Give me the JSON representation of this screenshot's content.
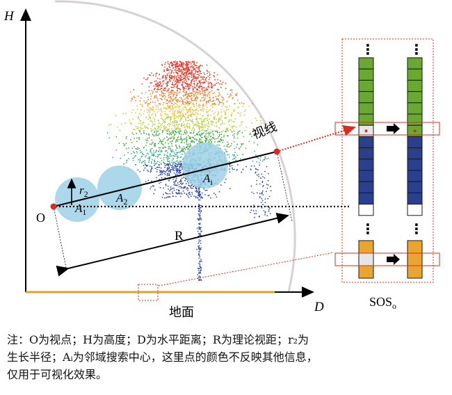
{
  "figure": {
    "axis_h": "H",
    "axis_d": "D",
    "origin": "O",
    "radius_r": "R",
    "r2_main": "r",
    "r2_sub": "2",
    "a1_main": "A",
    "a1_sub": "1",
    "a2_main": "A",
    "a2_sub": "2",
    "ai_main": "A",
    "ai_sub": "i",
    "sight_line": "视线",
    "ground": "地面",
    "sos_main": "SOS",
    "sos_sub": "o",
    "dots": "⋮"
  },
  "colors": {
    "green": "#6aa832",
    "blue": "#2b3f8f",
    "orange": "#eaa530",
    "bubble": "#9fd0e6",
    "red": "#d92b1f"
  },
  "caption": {
    "line1": "注：O为视点；H为高度；D为水平距离；R为理论视距；r₂为",
    "line2": "生长半径；Aᵢ为邻域搜索中心，这里点的颜色不反映其他信息，",
    "line3": "仅用于可视化效果。"
  }
}
